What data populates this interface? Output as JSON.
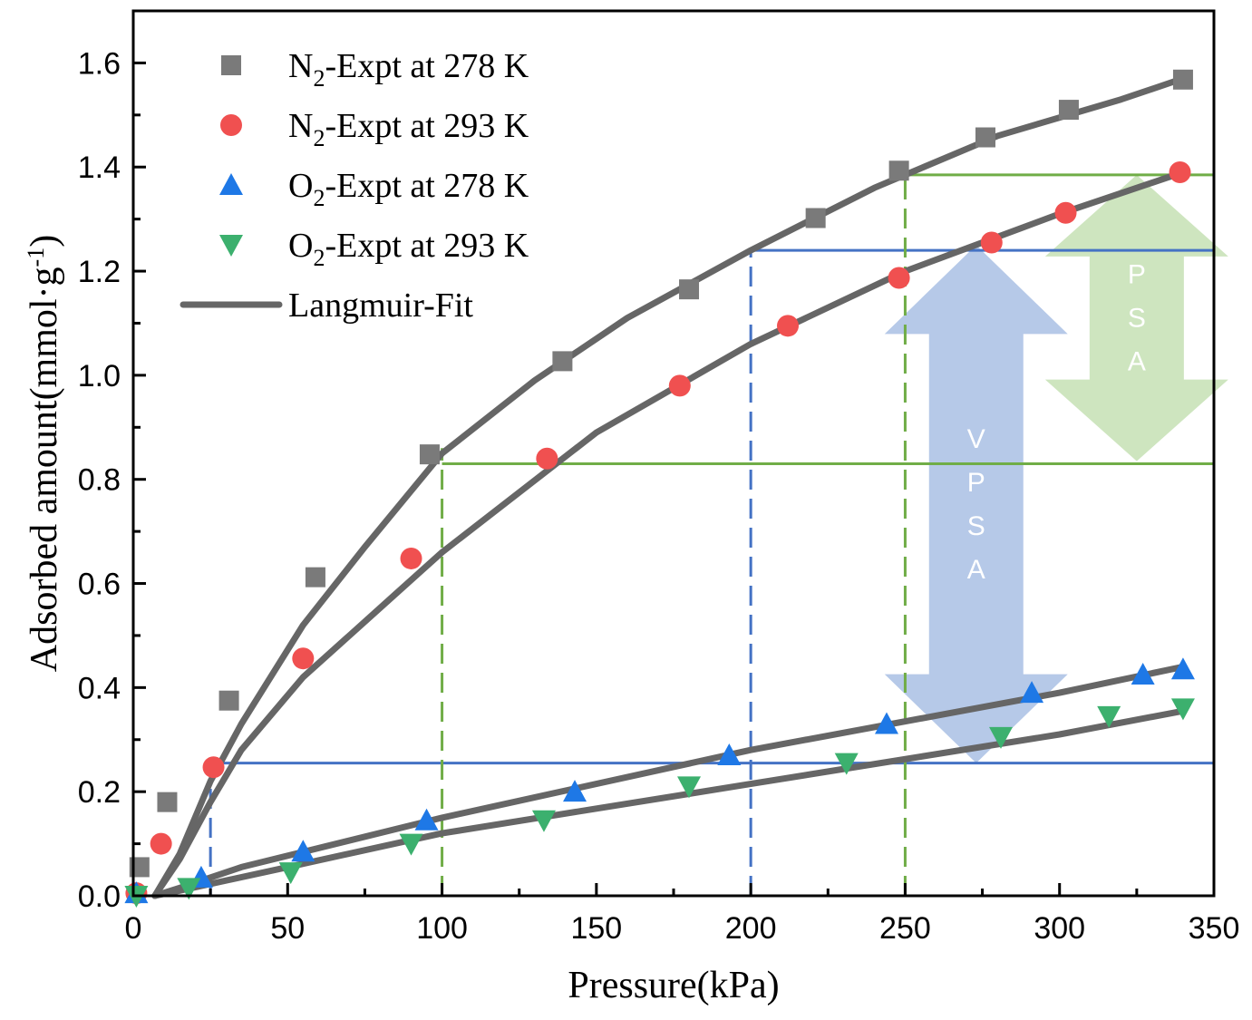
{
  "chart_data": {
    "type": "scatter",
    "xlabel": "Pressure(kPa)",
    "ylabel": "Adsorbed amount(mmol·g",
    "ylabel_sup": "-1",
    "ylabel_close": ")",
    "xlim": [
      0,
      350
    ],
    "ylim": [
      0,
      1.7
    ],
    "x_ticks": [
      0,
      50,
      100,
      150,
      200,
      250,
      300,
      350
    ],
    "y_ticks": [
      0.0,
      0.2,
      0.4,
      0.6,
      0.8,
      1.0,
      1.2,
      1.4,
      1.6
    ],
    "x_tick_labels": [
      "0",
      "50",
      "100",
      "150",
      "200",
      "250",
      "300",
      "350"
    ],
    "y_tick_labels": [
      "0.0",
      "0.2",
      "0.4",
      "0.6",
      "0.8",
      "1.0",
      "1.2",
      "1.4",
      "1.6"
    ],
    "grid": false,
    "legend_position": "top-left",
    "series": [
      {
        "name_prefix": "N",
        "name_sub": "2",
        "name_suffix": "-Expt at 278 K",
        "marker": "square",
        "color": "#7a7a7a",
        "points": [
          [
            2,
            0.055
          ],
          [
            11,
            0.18
          ],
          [
            31,
            0.375
          ],
          [
            59,
            0.612
          ],
          [
            96,
            0.848
          ],
          [
            139,
            1.027
          ],
          [
            180,
            1.165
          ],
          [
            221,
            1.302
          ],
          [
            248,
            1.393
          ],
          [
            276,
            1.457
          ],
          [
            303,
            1.51
          ],
          [
            340,
            1.568
          ]
        ]
      },
      {
        "name_prefix": "N",
        "name_sub": "2",
        "name_suffix": "-Expt at 293 K",
        "marker": "circle",
        "color": "#f05050",
        "points": [
          [
            1,
            0.005
          ],
          [
            9,
            0.1
          ],
          [
            26,
            0.247
          ],
          [
            55,
            0.456
          ],
          [
            90,
            0.648
          ],
          [
            134,
            0.84
          ],
          [
            177,
            0.98
          ],
          [
            212,
            1.095
          ],
          [
            248,
            1.187
          ],
          [
            278,
            1.255
          ],
          [
            302,
            1.312
          ],
          [
            339,
            1.39
          ]
        ]
      },
      {
        "name_prefix": "O",
        "name_sub": "2",
        "name_suffix": "-Expt at 278 K",
        "marker": "triangle-up",
        "color": "#1e78e6",
        "points": [
          [
            1,
            0.005
          ],
          [
            22,
            0.035
          ],
          [
            55,
            0.085
          ],
          [
            95,
            0.145
          ],
          [
            143,
            0.2
          ],
          [
            193,
            0.27
          ],
          [
            244,
            0.33
          ],
          [
            291,
            0.39
          ],
          [
            327,
            0.425
          ],
          [
            340,
            0.435
          ]
        ]
      },
      {
        "name_prefix": "O",
        "name_sub": "2",
        "name_suffix": "-Expt at 293 K",
        "marker": "triangle-down",
        "color": "#3cb06e",
        "points": [
          [
            1,
            0.0
          ],
          [
            18,
            0.015
          ],
          [
            51,
            0.045
          ],
          [
            90,
            0.1
          ],
          [
            133,
            0.145
          ],
          [
            180,
            0.21
          ],
          [
            231,
            0.255
          ],
          [
            281,
            0.305
          ],
          [
            316,
            0.345
          ],
          [
            340,
            0.36
          ]
        ]
      },
      {
        "name": "Langmuir-Fit",
        "marker": "line",
        "color": "#666666"
      }
    ],
    "fit_lines": [
      {
        "points": [
          [
            7,
            0.0
          ],
          [
            15,
            0.08
          ],
          [
            25,
            0.22
          ],
          [
            35,
            0.33
          ],
          [
            55,
            0.52
          ],
          [
            75,
            0.67
          ],
          [
            100,
            0.85
          ],
          [
            130,
            0.99
          ],
          [
            160,
            1.11
          ],
          [
            200,
            1.24
          ],
          [
            240,
            1.36
          ],
          [
            280,
            1.46
          ],
          [
            320,
            1.53
          ],
          [
            340,
            1.57
          ]
        ]
      },
      {
        "points": [
          [
            7,
            0.0
          ],
          [
            15,
            0.07
          ],
          [
            25,
            0.18
          ],
          [
            35,
            0.28
          ],
          [
            55,
            0.42
          ],
          [
            85,
            0.58
          ],
          [
            100,
            0.66
          ],
          [
            150,
            0.89
          ],
          [
            200,
            1.06
          ],
          [
            250,
            1.2
          ],
          [
            300,
            1.31
          ],
          [
            340,
            1.39
          ]
        ]
      },
      {
        "points": [
          [
            7,
            0.0
          ],
          [
            15,
            0.015
          ],
          [
            35,
            0.055
          ],
          [
            100,
            0.15
          ],
          [
            200,
            0.28
          ],
          [
            300,
            0.39
          ],
          [
            340,
            0.44
          ]
        ]
      },
      {
        "points": [
          [
            7,
            0.0
          ],
          [
            15,
            0.01
          ],
          [
            50,
            0.055
          ],
          [
            100,
            0.12
          ],
          [
            200,
            0.215
          ],
          [
            300,
            0.31
          ],
          [
            340,
            0.355
          ]
        ]
      }
    ],
    "reference_lines": [
      {
        "kind": "horizontal",
        "y": 0.255,
        "x_from": 25,
        "x_to": 350,
        "color": "#4472c4"
      },
      {
        "kind": "horizontal",
        "y": 1.24,
        "x_from": 200,
        "x_to": 350,
        "color": "#4472c4"
      },
      {
        "kind": "horizontal",
        "y": 0.83,
        "x_from": 100,
        "x_to": 350,
        "color": "#70ad47"
      },
      {
        "kind": "horizontal",
        "y": 1.385,
        "x_from": 250,
        "x_to": 350,
        "color": "#70ad47"
      },
      {
        "kind": "vertical-dashed",
        "x": 25,
        "y_from": 0,
        "y_to": 0.275,
        "color": "#4472c4"
      },
      {
        "kind": "vertical-dashed",
        "x": 200,
        "y_from": 0,
        "y_to": 1.24,
        "color": "#4472c4"
      },
      {
        "kind": "vertical-dashed",
        "x": 100,
        "y_from": 0,
        "y_to": 0.86,
        "color": "#70ad47"
      },
      {
        "kind": "vertical-dashed",
        "x": 250,
        "y_from": 0,
        "y_to": 1.385,
        "color": "#70ad47"
      }
    ],
    "annotations": [
      {
        "label_letters": [
          "V",
          "P",
          "S",
          "A"
        ],
        "x": 273,
        "y_top": 1.25,
        "y_bottom": 0.255,
        "color": "#a9bfe4"
      },
      {
        "label_letters": [
          "P",
          "S",
          "A"
        ],
        "x": 325,
        "y_top": 1.385,
        "y_bottom": 0.835,
        "color": "#c5e0b4"
      }
    ]
  }
}
